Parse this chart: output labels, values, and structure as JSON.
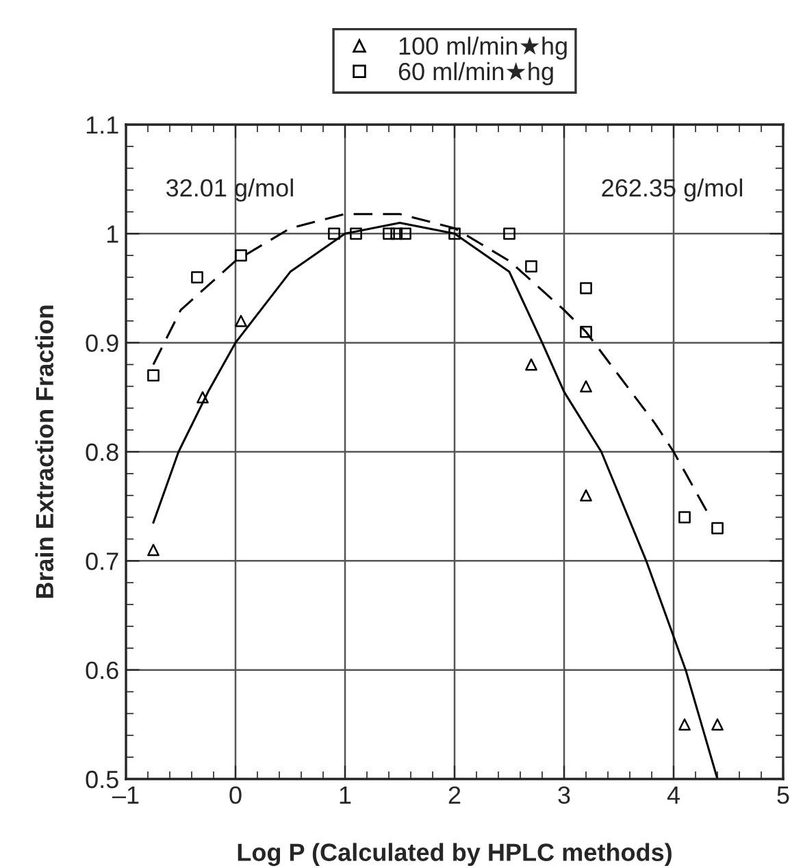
{
  "chart_data": {
    "type": "scatter",
    "xlabel": "Log P (Calculated by HPLC methods)",
    "ylabel": "Brain Extraction Fraction",
    "annotations": [
      "32.01 g/mol",
      "262.35 g/mol"
    ],
    "series": [
      {
        "name": "100 ml/min★hg",
        "marker": "triangle",
        "color": "#000000",
        "x": [
          -0.75,
          -0.3,
          0.05,
          2.7,
          3.2,
          3.2,
          4.1,
          4.4
        ],
        "values": [
          0.71,
          0.85,
          0.92,
          0.88,
          0.86,
          0.76,
          0.55,
          0.55
        ]
      },
      {
        "name": "60 ml/min★hg",
        "marker": "square",
        "color": "#000000",
        "x": [
          -0.75,
          -0.35,
          0.05,
          0.9,
          1.1,
          1.4,
          1.47,
          1.55,
          2.0,
          2.5,
          2.7,
          3.2,
          3.2,
          4.1,
          4.4
        ],
        "values": [
          0.87,
          0.96,
          0.98,
          1.0,
          1.0,
          1.0,
          1.0,
          1.0,
          1.0,
          1.0,
          0.97,
          0.95,
          0.91,
          0.74,
          0.73
        ]
      },
      {
        "type": "line",
        "line_style": "solid",
        "color": "#000000",
        "x": [
          -0.75,
          -0.52,
          -0.25,
          0,
          0.5,
          1,
          1.5,
          2,
          2.5,
          2.8,
          3,
          3.34,
          3.75,
          4.11,
          4.4
        ],
        "values": [
          0.735,
          0.8,
          0.855,
          0.9,
          0.965,
          1.0,
          1.01,
          1.0,
          0.965,
          0.9,
          0.855,
          0.8,
          0.7,
          0.6,
          0.5
        ]
      },
      {
        "type": "line",
        "line_style": "dashed",
        "color": "#000000",
        "x": [
          -0.75,
          -0.5,
          0,
          0.5,
          1,
          1.5,
          2,
          2.5,
          3,
          3.2,
          3.5,
          3.83,
          4,
          4.3
        ],
        "values": [
          0.88,
          0.93,
          0.975,
          1.005,
          1.018,
          1.018,
          1.005,
          0.975,
          0.93,
          0.91,
          0.87,
          0.826,
          0.8,
          0.746
        ]
      }
    ],
    "xlim": [
      -1,
      5
    ],
    "ylim": [
      0.5,
      1.1
    ],
    "xticks": [
      {
        "value": -1,
        "label": "–1"
      },
      0,
      1,
      2,
      3,
      4,
      5
    ],
    "yticks": [
      0.5,
      0.6,
      0.7,
      0.8,
      0.9,
      1,
      1.1
    ],
    "grid": true,
    "legend": "top"
  }
}
